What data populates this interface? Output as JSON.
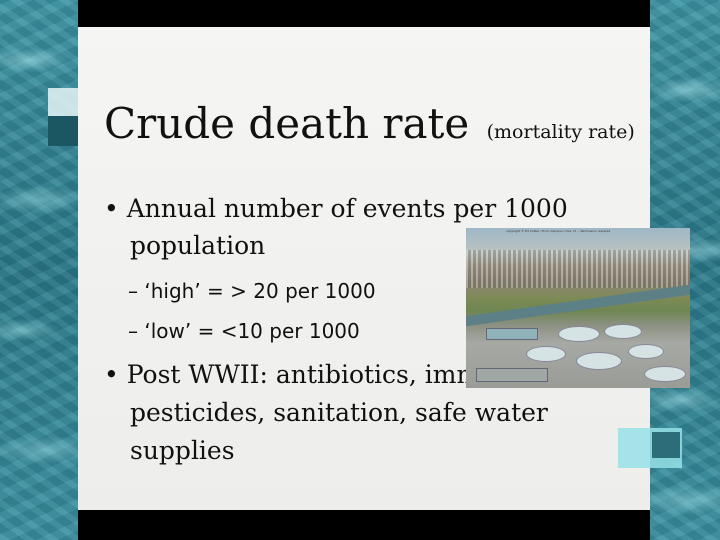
{
  "slide": {
    "title": "Crude death rate",
    "title_sub": "(mortality rate)",
    "bullets": [
      {
        "text": "Annual number of events per 1000 population",
        "sub": [
          "– ‘high’ = > 20 per 1000",
          "– ‘low’ = <10 per 1000"
        ]
      },
      {
        "text": "Post WWII: antibiotics, immunization, pesticides, sanitation, safe water supplies"
      }
    ],
    "bullet_symbol": "•",
    "image": {
      "icon": "water-treatment-plant-photo",
      "caption": "copyright © Ed Collier / Ecol. Campus, Univ. of ... Permission required"
    }
  },
  "colors": {
    "background": "#2f7f8f",
    "panel": "#f3f3f1",
    "bars": "#000000",
    "text": "#111111"
  }
}
